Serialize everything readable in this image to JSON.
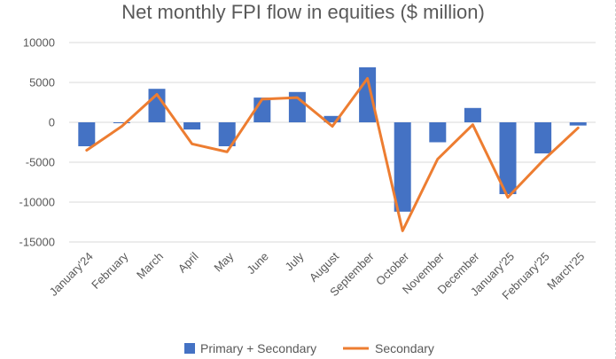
{
  "chart_data": {
    "type": "bar",
    "title": "Net monthly FPI flow in equities ($ million)",
    "xlabel": "",
    "ylabel": "",
    "ylim": [
      -15000,
      10000
    ],
    "yticks": [
      10000,
      5000,
      0,
      -5000,
      -10000,
      -15000
    ],
    "categories": [
      "January'24",
      "February",
      "March",
      "April",
      "May",
      "June",
      "July",
      "August",
      "September",
      "October",
      "November",
      "December",
      "January'25",
      "February'25",
      "March'25"
    ],
    "series": [
      {
        "name": "Primary + Secondary",
        "kind": "bar",
        "color": "#4472c4",
        "values": [
          -3000,
          -100,
          4200,
          -900,
          -3000,
          3100,
          3800,
          800,
          6900,
          -11200,
          -2500,
          1800,
          -9000,
          -3900,
          -400
        ]
      },
      {
        "name": "Secondary",
        "kind": "line",
        "color": "#ed7d31",
        "values": [
          -3500,
          -500,
          3500,
          -2700,
          -3700,
          2900,
          3100,
          -500,
          5500,
          -13600,
          -4600,
          -300,
          -9400,
          -4800,
          -700
        ]
      }
    ],
    "grid": true,
    "legend_position": "bottom"
  }
}
